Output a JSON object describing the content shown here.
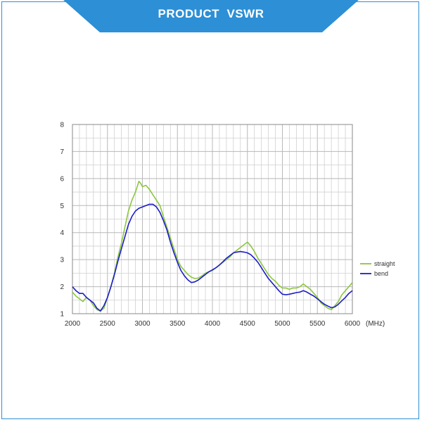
{
  "header": {
    "title": "PRODUCT  VSWR"
  },
  "colors": {
    "banner": "#2d8fd5",
    "frame": "#2d8fd5",
    "grid_major": "#b8b8b8",
    "grid_minor": "#d0d0d0"
  },
  "chart_data": {
    "type": "line",
    "title": "",
    "xlabel": "",
    "ylabel": "",
    "x_unit_label": "(MHz)",
    "xlim": [
      2000,
      6000
    ],
    "ylim": [
      1,
      8
    ],
    "x_ticks": [
      2000,
      2500,
      3000,
      3500,
      4000,
      4500,
      5000,
      5500,
      6000
    ],
    "y_ticks": [
      1,
      2,
      3,
      4,
      5,
      6,
      7,
      8
    ],
    "grid": true,
    "legend_position": "right",
    "series": [
      {
        "name": "straight",
        "color": "#8cc63f",
        "x": [
          2000,
          2050,
          2100,
          2150,
          2200,
          2250,
          2300,
          2350,
          2400,
          2450,
          2500,
          2550,
          2600,
          2650,
          2700,
          2750,
          2800,
          2850,
          2900,
          2950,
          2980,
          3000,
          3050,
          3100,
          3150,
          3200,
          3250,
          3300,
          3350,
          3400,
          3450,
          3500,
          3550,
          3600,
          3650,
          3700,
          3750,
          3800,
          3850,
          3900,
          3950,
          4000,
          4050,
          4100,
          4150,
          4200,
          4250,
          4300,
          4350,
          4400,
          4450,
          4500,
          4550,
          4600,
          4650,
          4700,
          4750,
          4800,
          4850,
          4900,
          4950,
          5000,
          5050,
          5100,
          5150,
          5200,
          5250,
          5300,
          5350,
          5400,
          5450,
          5500,
          5550,
          5600,
          5650,
          5700,
          5750,
          5800,
          5850,
          5900,
          5950,
          6000
        ],
        "y": [
          1.8,
          1.65,
          1.55,
          1.45,
          1.6,
          1.5,
          1.3,
          1.15,
          1.1,
          1.2,
          1.6,
          2.0,
          2.5,
          3.1,
          3.6,
          4.2,
          4.8,
          5.2,
          5.5,
          5.9,
          5.8,
          5.7,
          5.75,
          5.6,
          5.4,
          5.2,
          5.0,
          4.6,
          4.2,
          3.8,
          3.4,
          3.0,
          2.75,
          2.6,
          2.45,
          2.35,
          2.3,
          2.32,
          2.4,
          2.5,
          2.55,
          2.6,
          2.7,
          2.8,
          2.9,
          3.0,
          3.1,
          3.25,
          3.35,
          3.45,
          3.55,
          3.65,
          3.5,
          3.3,
          3.05,
          2.85,
          2.65,
          2.45,
          2.3,
          2.2,
          2.05,
          1.95,
          1.95,
          1.9,
          1.95,
          1.95,
          2.0,
          2.1,
          2.0,
          1.9,
          1.75,
          1.6,
          1.4,
          1.3,
          1.2,
          1.15,
          1.3,
          1.45,
          1.7,
          1.85,
          2.0,
          2.15
        ]
      },
      {
        "name": "bend",
        "color": "#1c1cc8",
        "x": [
          2000,
          2050,
          2100,
          2150,
          2200,
          2250,
          2300,
          2350,
          2400,
          2450,
          2500,
          2550,
          2600,
          2650,
          2700,
          2750,
          2800,
          2850,
          2900,
          2950,
          3000,
          3050,
          3100,
          3150,
          3200,
          3250,
          3300,
          3350,
          3400,
          3450,
          3500,
          3550,
          3600,
          3650,
          3700,
          3750,
          3800,
          3850,
          3900,
          3950,
          4000,
          4050,
          4100,
          4150,
          4200,
          4250,
          4300,
          4350,
          4400,
          4450,
          4500,
          4550,
          4600,
          4650,
          4700,
          4750,
          4800,
          4850,
          4900,
          4950,
          5000,
          5050,
          5100,
          5150,
          5200,
          5250,
          5300,
          5350,
          5400,
          5450,
          5500,
          5550,
          5600,
          5650,
          5700,
          5750,
          5800,
          5850,
          5900,
          5950,
          6000
        ],
        "y": [
          2.0,
          1.85,
          1.75,
          1.75,
          1.6,
          1.5,
          1.4,
          1.2,
          1.1,
          1.3,
          1.6,
          2.0,
          2.45,
          2.95,
          3.4,
          3.85,
          4.3,
          4.6,
          4.8,
          4.9,
          4.95,
          5.0,
          5.05,
          5.05,
          4.95,
          4.75,
          4.45,
          4.1,
          3.65,
          3.25,
          2.9,
          2.6,
          2.4,
          2.25,
          2.15,
          2.18,
          2.25,
          2.35,
          2.45,
          2.55,
          2.62,
          2.7,
          2.8,
          2.92,
          3.05,
          3.15,
          3.25,
          3.28,
          3.3,
          3.28,
          3.25,
          3.18,
          3.05,
          2.9,
          2.7,
          2.5,
          2.3,
          2.15,
          2.0,
          1.85,
          1.72,
          1.7,
          1.72,
          1.75,
          1.78,
          1.8,
          1.85,
          1.8,
          1.72,
          1.65,
          1.55,
          1.45,
          1.35,
          1.28,
          1.22,
          1.25,
          1.35,
          1.48,
          1.6,
          1.75,
          1.85
        ]
      }
    ]
  }
}
